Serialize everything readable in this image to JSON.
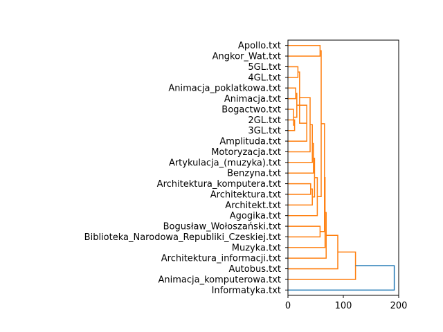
{
  "chart_data": {
    "type": "dendrogram",
    "orientation": "left",
    "xlim": [
      0,
      200
    ],
    "xticks": [
      0,
      100,
      200
    ],
    "grid": false,
    "colors": {
      "cluster": "#ff7f0e",
      "above_threshold": "#1f77b4"
    },
    "leaves": [
      "Apollo.txt",
      "Angkor_Wat.txt",
      "5GL.txt",
      "4GL.txt",
      "Animacja_poklatkowa.txt",
      "Animacja.txt",
      "Bogactwo.txt",
      "2GL.txt",
      "3GL.txt",
      "Amplituda.txt",
      "Motoryzacja.txt",
      "Artykulacja_(muzyka).txt",
      "Benzyna.txt",
      "Architektura_komputera.txt",
      "Architektura.txt",
      "Architekt.txt",
      "Agogika.txt",
      "Bogusław_Wołoszański.txt",
      "Biblioteka_Narodowa_Republiki_Czeskiej.txt",
      "Muzyka.txt",
      "Architektura_informacji.txt",
      "Autobus.txt",
      "Animacja_komputerowa.txt",
      "Informatyka.txt"
    ],
    "merges": [
      {
        "a": 0,
        "b": 1,
        "height": 58,
        "color": "cluster"
      },
      {
        "a": 2,
        "b": 3,
        "height": 18,
        "color": "cluster"
      },
      {
        "a": 4,
        "b": 5,
        "height": 14,
        "color": "cluster"
      },
      {
        "a": 7,
        "b": 8,
        "height": 12,
        "color": "cluster"
      },
      {
        "a": 6,
        "b": "n3",
        "height": 10,
        "color": "cluster"
      },
      {
        "a": "n2",
        "b": "n4",
        "height": 16,
        "color": "cluster"
      },
      {
        "a": "n5",
        "b": 9,
        "height": 34,
        "color": "cluster"
      },
      {
        "a": "n1",
        "b": "n6",
        "height": 21,
        "color": "cluster"
      },
      {
        "a": "n7",
        "b": 10,
        "height": 40,
        "color": "cluster"
      },
      {
        "a": "n8",
        "b": 11,
        "height": 44,
        "color": "cluster"
      },
      {
        "a": "n9",
        "b": 12,
        "height": 46,
        "color": "cluster"
      },
      {
        "a": 13,
        "b": 14,
        "height": 41,
        "color": "cluster"
      },
      {
        "a": "n11",
        "b": 15,
        "height": 44,
        "color": "cluster"
      },
      {
        "a": "n10",
        "b": "n12",
        "height": 48,
        "color": "cluster"
      },
      {
        "a": "n13",
        "b": 16,
        "height": 53,
        "color": "cluster"
      },
      {
        "a": "n0",
        "b": "n14",
        "height": 60,
        "color": "cluster"
      },
      {
        "a": 17,
        "b": 18,
        "height": 58,
        "color": "cluster"
      },
      {
        "a": "n15",
        "b": "n16",
        "height": 66,
        "color": "cluster"
      },
      {
        "a": "n17",
        "b": 19,
        "height": 67,
        "color": "cluster"
      },
      {
        "a": "n18",
        "b": 20,
        "height": 69,
        "color": "cluster"
      },
      {
        "a": "n19",
        "b": 21,
        "height": 90,
        "color": "cluster"
      },
      {
        "a": "n20",
        "b": 22,
        "height": 122,
        "color": "cluster"
      },
      {
        "a": "n21",
        "b": 23,
        "height": 192,
        "color": "above_threshold"
      }
    ]
  }
}
